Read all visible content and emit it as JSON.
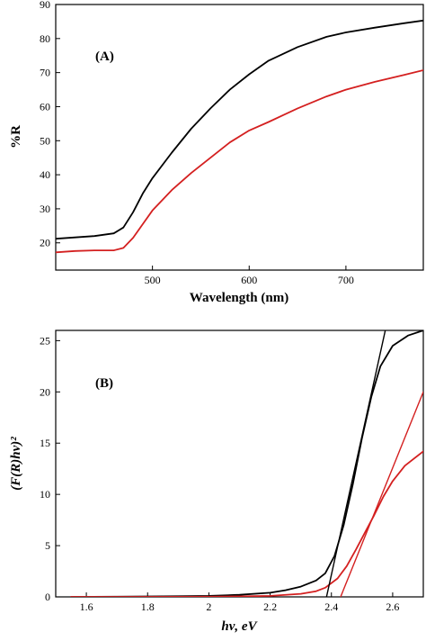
{
  "chart_data": [
    {
      "type": "line",
      "panel_label": "(A)",
      "xlabel": "Wavelength (nm)",
      "ylabel": "%R",
      "xlim": [
        400,
        780
      ],
      "ylim": [
        12,
        90
      ],
      "xticks": [
        500,
        600,
        700
      ],
      "yticks": [
        20,
        30,
        40,
        50,
        60,
        70,
        80,
        90
      ],
      "grid": false,
      "series": [
        {
          "color": "#000000",
          "x": [
            400,
            420,
            440,
            460,
            470,
            480,
            490,
            500,
            520,
            540,
            560,
            580,
            600,
            620,
            650,
            680,
            700,
            730,
            760,
            780
          ],
          "y": [
            21.2,
            21.6,
            22.0,
            22.8,
            24.5,
            29.0,
            34.5,
            39.0,
            46.5,
            53.5,
            59.5,
            65.0,
            69.5,
            73.5,
            77.5,
            80.5,
            81.8,
            83.2,
            84.5,
            85.3
          ]
        },
        {
          "color": "#d42020",
          "x": [
            400,
            420,
            440,
            460,
            470,
            480,
            490,
            500,
            520,
            540,
            560,
            580,
            600,
            620,
            650,
            680,
            700,
            730,
            760,
            780
          ],
          "y": [
            17.2,
            17.6,
            17.8,
            17.8,
            18.5,
            21.5,
            25.5,
            29.5,
            35.5,
            40.5,
            45.0,
            49.5,
            53.0,
            55.5,
            59.5,
            63.0,
            65.0,
            67.3,
            69.3,
            70.7
          ]
        }
      ]
    },
    {
      "type": "line",
      "panel_label": "(B)",
      "xlabel": "hν, eV",
      "ylabel": "(F(R)hν)²",
      "xlim": [
        1.5,
        2.7
      ],
      "ylim": [
        0,
        26
      ],
      "xticks": [
        1.6,
        1.8,
        2.0,
        2.2,
        2.4,
        2.6
      ],
      "yticks": [
        0,
        5,
        10,
        15,
        20,
        25
      ],
      "grid": false,
      "series": [
        {
          "color": "#000000",
          "x": [
            1.55,
            1.7,
            1.9,
            2.0,
            2.1,
            2.2,
            2.25,
            2.3,
            2.35,
            2.38,
            2.41,
            2.44,
            2.47,
            2.5,
            2.53,
            2.56,
            2.6,
            2.65,
            2.7
          ],
          "y": [
            0.0,
            0.02,
            0.06,
            0.1,
            0.2,
            0.4,
            0.65,
            1.0,
            1.6,
            2.3,
            4.0,
            7.0,
            11.0,
            15.5,
            19.5,
            22.5,
            24.5,
            25.5,
            26.0
          ]
        },
        {
          "color": "#d42020",
          "x": [
            1.55,
            1.7,
            1.9,
            2.0,
            2.1,
            2.2,
            2.3,
            2.35,
            2.38,
            2.42,
            2.45,
            2.48,
            2.51,
            2.54,
            2.57,
            2.6,
            2.64,
            2.7
          ],
          "y": [
            0.0,
            0.0,
            0.01,
            0.02,
            0.05,
            0.1,
            0.3,
            0.55,
            0.9,
            1.8,
            3.0,
            4.6,
            6.3,
            8.0,
            9.8,
            11.3,
            12.8,
            14.2
          ]
        },
        {
          "color": "#000000",
          "style": "tangent",
          "x": [
            2.384,
            2.576
          ],
          "y": [
            0,
            26
          ]
        },
        {
          "color": "#d42020",
          "style": "tangent",
          "x": [
            2.43,
            2.7
          ],
          "y": [
            0,
            20
          ]
        }
      ]
    }
  ]
}
